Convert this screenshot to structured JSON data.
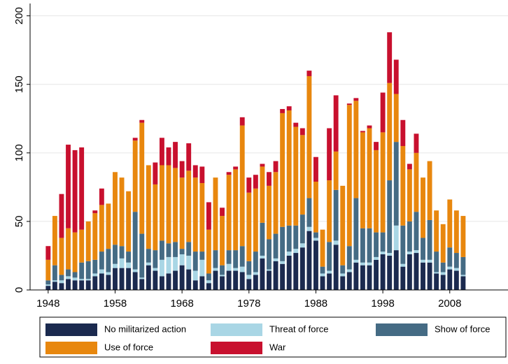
{
  "chart_data": {
    "type": "stacked_bar",
    "x": [
      1948,
      1949,
      1950,
      1951,
      1952,
      1953,
      1954,
      1955,
      1956,
      1957,
      1958,
      1959,
      1960,
      1961,
      1962,
      1963,
      1964,
      1965,
      1966,
      1967,
      1968,
      1969,
      1970,
      1971,
      1972,
      1973,
      1974,
      1975,
      1976,
      1977,
      1978,
      1979,
      1980,
      1981,
      1982,
      1983,
      1984,
      1985,
      1986,
      1987,
      1988,
      1989,
      1990,
      1991,
      1992,
      1993,
      1994,
      1995,
      1996,
      1997,
      1998,
      1999,
      2000,
      2001,
      2002,
      2003,
      2004,
      2005,
      2006,
      2007,
      2008,
      2009,
      2010
    ],
    "series": [
      {
        "name": "No militarized action",
        "color": "#1b2a4f",
        "values": [
          3,
          6,
          5,
          8,
          7,
          7,
          7,
          10,
          12,
          11,
          16,
          16,
          16,
          13,
          8,
          18,
          14,
          10,
          12,
          14,
          18,
          15,
          7,
          10,
          5,
          14,
          10,
          14,
          14,
          13,
          8,
          11,
          23,
          14,
          21,
          19,
          25,
          27,
          31,
          43,
          36,
          10,
          12,
          33,
          10,
          13,
          20,
          18,
          18,
          22,
          26,
          25,
          29,
          17,
          26,
          27,
          20,
          20,
          12,
          11,
          15,
          14,
          10
        ]
      },
      {
        "name": "Threat of force",
        "color": "#a9d6e5",
        "values": [
          1,
          1,
          2,
          2,
          2,
          1,
          1,
          2,
          3,
          2,
          3,
          7,
          4,
          2,
          1,
          2,
          2,
          12,
          12,
          10,
          8,
          10,
          7,
          12,
          2,
          2,
          1,
          5,
          2,
          4,
          3,
          2,
          2,
          1,
          2,
          2,
          3,
          3,
          3,
          3,
          2,
          2,
          2,
          3,
          2,
          2,
          2,
          2,
          2,
          2,
          2,
          2,
          18,
          2,
          2,
          2,
          2,
          2,
          1,
          2,
          2,
          2,
          1
        ]
      },
      {
        "name": "Show of force",
        "color": "#456b84",
        "values": [
          3,
          11,
          4,
          5,
          4,
          12,
          13,
          10,
          13,
          17,
          14,
          9,
          8,
          42,
          32,
          10,
          13,
          14,
          10,
          11,
          4,
          10,
          14,
          6,
          5,
          13,
          7,
          10,
          13,
          15,
          10,
          15,
          24,
          22,
          18,
          25,
          19,
          17,
          21,
          21,
          4,
          5,
          21,
          37,
          6,
          17,
          45,
          25,
          25,
          18,
          14,
          53,
          61,
          28,
          22,
          28,
          16,
          29,
          15,
          7,
          14,
          11,
          13
        ]
      },
      {
        "name": "Use of force",
        "color": "#e8870e",
        "values": [
          15,
          36,
          27,
          30,
          29,
          24,
          29,
          34,
          34,
          33,
          53,
          50,
          44,
          52,
          81,
          61,
          48,
          55,
          57,
          54,
          52,
          52,
          54,
          50,
          32,
          53,
          36,
          55,
          59,
          88,
          50,
          46,
          41,
          39,
          45,
          83,
          84,
          72,
          58,
          89,
          37,
          27,
          45,
          28,
          58,
          103,
          71,
          70,
          73,
          60,
          73,
          71,
          35,
          58,
          38,
          43,
          44,
          43,
          30,
          28,
          35,
          31,
          30
        ]
      },
      {
        "name": "War",
        "color": "#c8102e",
        "values": [
          10,
          0,
          32,
          61,
          60,
          60,
          0,
          2,
          12,
          0,
          0,
          0,
          0,
          2,
          2,
          0,
          16,
          20,
          13,
          19,
          12,
          20,
          9,
          12,
          20,
          0,
          6,
          2,
          2,
          6,
          11,
          10,
          2,
          10,
          8,
          3,
          3,
          3,
          5,
          4,
          18,
          0,
          38,
          41,
          0,
          1,
          2,
          1,
          2,
          6,
          29,
          37,
          25,
          19,
          4,
          14,
          0,
          0,
          0,
          0,
          0,
          0,
          0
        ]
      }
    ],
    "xlim": [
      1945.3,
      2016.7
    ],
    "xticks": [
      1948,
      1958,
      1968,
      1978,
      1988,
      1998,
      2008
    ],
    "ylim": [
      0,
      209
    ],
    "yticks": [
      0,
      50,
      100,
      150,
      200
    ],
    "grid": true
  }
}
